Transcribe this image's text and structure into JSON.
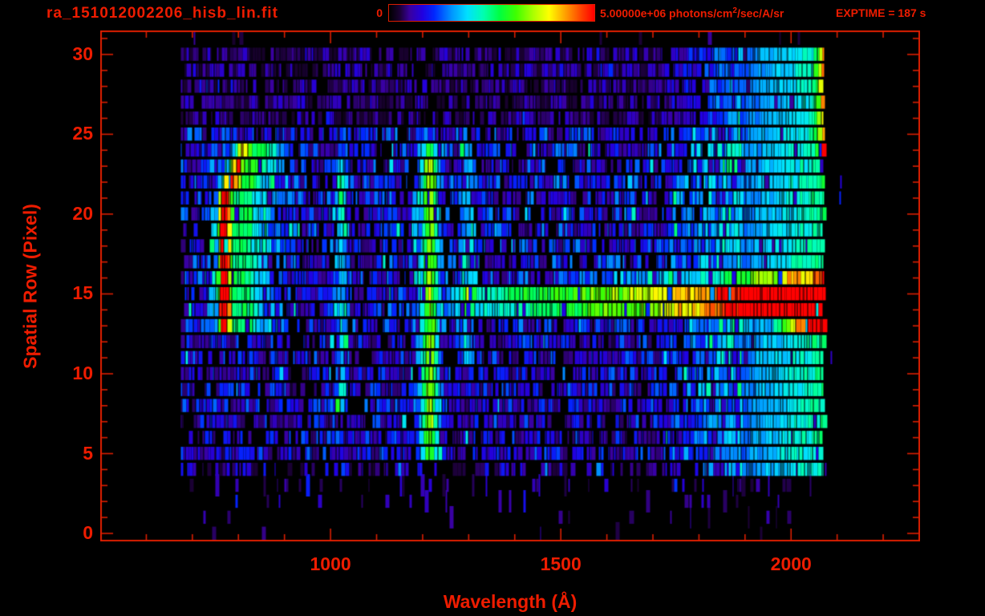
{
  "window": {
    "title": "ra_151012002206_hisb_lin.fit"
  },
  "colorbar": {
    "min_label": "0",
    "max_value_label": "5.00000e+06",
    "units_prefix": " photons/cm",
    "units_sup": "2",
    "units_suffix": "/sec/A/sr",
    "exptime_label": "EXPTIME = 187 s"
  },
  "colors": {
    "text": "#ee1c00",
    "axis": "#da1e00",
    "background": "#000000"
  },
  "chart_data": {
    "type": "heatmap",
    "title": "ra_151012002206_hisb_lin.fit",
    "xlabel": "Wavelength (Å)",
    "ylabel": "Spatial Row (Pixel)",
    "xlim": [
      500,
      2280
    ],
    "ylim": [
      -0.5,
      31.5
    ],
    "x_ticks_major": [
      1000,
      1500,
      2000
    ],
    "x_tick_minor_step": 100,
    "x_minor_range": [
      600,
      2200
    ],
    "y_ticks_major": [
      0,
      5,
      10,
      15,
      20,
      25,
      30
    ],
    "y_tick_minor_step": 1,
    "n_spatial_rows": 32,
    "wavelength_coverage_angstrom": [
      675,
      2070
    ],
    "colorbar": {
      "min": 0,
      "max": 5000000,
      "units": "photons/cm^2/sec/A/sr"
    },
    "exptime_seconds": 187,
    "colormap_stops": [
      [
        0.0,
        "#000000"
      ],
      [
        0.05,
        "#1a0033"
      ],
      [
        0.1,
        "#3a00a0"
      ],
      [
        0.16,
        "#2200e0"
      ],
      [
        0.22,
        "#0028ff"
      ],
      [
        0.3,
        "#0090ff"
      ],
      [
        0.38,
        "#00e0ff"
      ],
      [
        0.46,
        "#00ffb0"
      ],
      [
        0.54,
        "#00ff40"
      ],
      [
        0.62,
        "#40ff00"
      ],
      [
        0.7,
        "#a8ff00"
      ],
      [
        0.78,
        "#ffff00"
      ],
      [
        0.86,
        "#ffa000"
      ],
      [
        0.94,
        "#ff4000"
      ],
      [
        1.0,
        "#ff0000"
      ]
    ],
    "noise_rows": [
      {
        "rows": [
          0,
          0
        ],
        "density": 0.03,
        "vmin": 0.05,
        "vmax": 0.12
      },
      {
        "rows": [
          1,
          2
        ],
        "density": 0.07,
        "vmin": 0.05,
        "vmax": 0.15
      },
      {
        "rows": [
          3,
          3
        ],
        "density": 0.2,
        "vmin": 0.05,
        "vmax": 0.16
      },
      {
        "rows": [
          4,
          4
        ],
        "density": 0.5,
        "vmin": 0.05,
        "vmax": 0.2
      },
      {
        "rows": [
          5,
          12
        ],
        "density": 0.8,
        "vmin": 0.07,
        "vmax": 0.27
      },
      {
        "rows": [
          13,
          25
        ],
        "density": 0.82,
        "vmin": 0.08,
        "vmax": 0.3
      },
      {
        "rows": [
          26,
          30
        ],
        "density": 0.85,
        "vmin": 0.04,
        "vmax": 0.16
      },
      {
        "rows": [
          31,
          31
        ],
        "density": 0.05,
        "vmin": 0.04,
        "vmax": 0.1
      }
    ],
    "features": [
      {
        "name": "airglow-arc-core",
        "type": "gauss",
        "rows": [
          13,
          21
        ],
        "center": 770,
        "sigma": 9,
        "amp": 1.02,
        "edge_fade": 0.85
      },
      {
        "name": "airglow-arc-core-upper",
        "type": "gauss",
        "rows": [
          22,
          24
        ],
        "center": 783,
        "drift_per_row": 13,
        "sigma": 13,
        "amp": 0.8,
        "amp_per_row": -0.11
      },
      {
        "name": "airglow-arc-halo",
        "type": "gauss",
        "rows": [
          13,
          21
        ],
        "center": 812,
        "sigma": 36,
        "amp": 0.46
      },
      {
        "name": "airglow-arc-halo-upper",
        "type": "gauss",
        "rows": [
          22,
          24
        ],
        "center": 828,
        "drift_per_row": 12,
        "sigma": 30,
        "amp": 0.5
      },
      {
        "name": "lyman-alpha-emission-1216",
        "type": "gauss",
        "rows": [
          5,
          24
        ],
        "center": 1216,
        "sigma": 15,
        "amp": 0.63,
        "edge_fade": 0.85
      },
      {
        "name": "lyman-beta-emission-1026",
        "type": "gauss",
        "rows": [
          8,
          23
        ],
        "center": 1024,
        "sigma": 8,
        "amp": 0.33,
        "boost_rows": [
          20,
          22
        ],
        "boost": 1.35
      },
      {
        "name": "emission-line-1300",
        "type": "gauss",
        "rows": [
          11,
          24
        ],
        "center": 1300,
        "sigma": 9,
        "amp": 0.3
      },
      {
        "name": "stellar-continuum-row-15",
        "type": "ramp",
        "rows": [
          15,
          15
        ],
        "stops": [
          [
            1245,
            0
          ],
          [
            1260,
            0.32
          ],
          [
            1400,
            0.46
          ],
          [
            1600,
            0.6
          ],
          [
            1800,
            0.74
          ],
          [
            1950,
            0.86
          ],
          [
            2040,
            0.96
          ],
          [
            2072,
            1.0
          ]
        ]
      },
      {
        "name": "stellar-continuum-row-14",
        "type": "ramp",
        "rows": [
          14,
          14
        ],
        "stops": [
          [
            1255,
            0
          ],
          [
            1270,
            0.27
          ],
          [
            1400,
            0.4
          ],
          [
            1600,
            0.55
          ],
          [
            1800,
            0.7
          ],
          [
            1950,
            0.84
          ],
          [
            2020,
            0.95
          ],
          [
            2072,
            1.02
          ]
        ]
      },
      {
        "name": "continuum-wing-row-16",
        "type": "ramp",
        "rows": [
          16,
          16
        ],
        "stops": [
          [
            1450,
            0
          ],
          [
            1700,
            0.15
          ],
          [
            1900,
            0.3
          ],
          [
            2000,
            0.4
          ],
          [
            2072,
            0.46
          ]
        ]
      },
      {
        "name": "continuum-endcap-row-13",
        "type": "ramp",
        "rows": [
          13,
          13
        ],
        "stops": [
          [
            1960,
            0
          ],
          [
            2020,
            0.45
          ],
          [
            2055,
            0.9
          ],
          [
            2072,
            1.0
          ]
        ]
      },
      {
        "name": "long-wavelength-glow",
        "type": "ramp",
        "rows": [
          4,
          30
        ],
        "stops": [
          [
            1700,
            0
          ],
          [
            1800,
            0.1
          ],
          [
            1880,
            0.2
          ],
          [
            1950,
            0.3
          ],
          [
            2030,
            0.38
          ],
          [
            2072,
            0.44
          ]
        ]
      },
      {
        "name": "right-edge-caps",
        "type": "ramp",
        "rows": [
          24,
          30
        ],
        "stops": [
          [
            2048,
            0
          ],
          [
            2065,
            0.25
          ],
          [
            2072,
            0.42
          ]
        ]
      }
    ]
  }
}
